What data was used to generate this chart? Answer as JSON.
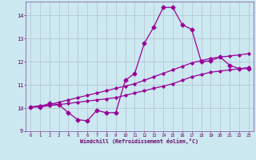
{
  "xlabel": "Windchill (Refroidissement éolien,°C)",
  "bg_color": "#cce8f0",
  "line_color": "#990099",
  "grid_color": "#aabbcc",
  "x_data": [
    0,
    1,
    2,
    3,
    4,
    5,
    6,
    7,
    8,
    9,
    10,
    11,
    12,
    13,
    14,
    15,
    16,
    17,
    18,
    19,
    20,
    21,
    22,
    23
  ],
  "y_main": [
    10.05,
    10.05,
    10.2,
    10.15,
    9.8,
    9.5,
    9.45,
    9.9,
    9.8,
    9.8,
    11.2,
    11.5,
    12.8,
    13.5,
    14.35,
    14.35,
    13.6,
    13.4,
    12.0,
    12.05,
    12.2,
    11.85,
    11.7,
    11.7
  ],
  "y_line1": [
    10.05,
    10.05,
    10.1,
    10.15,
    10.2,
    10.25,
    10.3,
    10.35,
    10.4,
    10.45,
    10.55,
    10.65,
    10.75,
    10.85,
    10.95,
    11.05,
    11.2,
    11.35,
    11.45,
    11.55,
    11.6,
    11.65,
    11.7,
    11.75
  ],
  "y_line2": [
    10.05,
    10.1,
    10.15,
    10.25,
    10.35,
    10.45,
    10.55,
    10.65,
    10.75,
    10.85,
    10.95,
    11.05,
    11.2,
    11.35,
    11.5,
    11.65,
    11.8,
    11.95,
    12.05,
    12.15,
    12.2,
    12.25,
    12.3,
    12.35
  ],
  "ylim": [
    9.0,
    14.6
  ],
  "yticks": [
    9,
    10,
    11,
    12,
    13,
    14
  ],
  "xlim": [
    -0.5,
    23.5
  ],
  "xticks": [
    0,
    1,
    2,
    3,
    4,
    5,
    6,
    7,
    8,
    9,
    10,
    11,
    12,
    13,
    14,
    15,
    16,
    17,
    18,
    19,
    20,
    21,
    22,
    23
  ]
}
